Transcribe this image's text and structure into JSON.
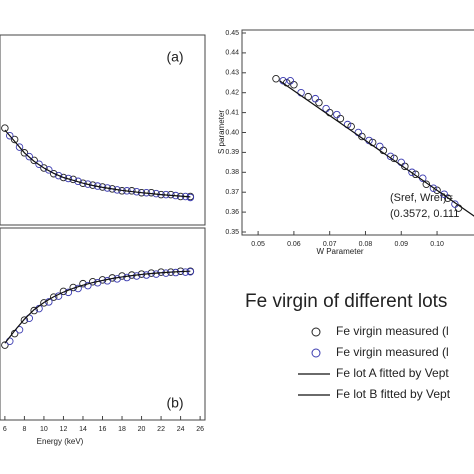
{
  "chart_data": [
    {
      "type": "line",
      "annotation": "(a)",
      "xlim": [
        5.5,
        26.5
      ],
      "ylim": [
        0,
        1
      ],
      "series": [
        {
          "color": "#222222",
          "style": "marker",
          "x": [
            6,
            7,
            8,
            9,
            10,
            11,
            12,
            13,
            14,
            15,
            16,
            17,
            18,
            19,
            20,
            21,
            22,
            23,
            24,
            25
          ],
          "values": [
            0.51,
            0.45,
            0.38,
            0.34,
            0.3,
            0.27,
            0.25,
            0.24,
            0.22,
            0.21,
            0.2,
            0.19,
            0.18,
            0.18,
            0.17,
            0.17,
            0.16,
            0.16,
            0.15,
            0.15
          ]
        },
        {
          "color": "#3b3bb0",
          "style": "marker",
          "x": [
            6.5,
            7.5,
            8.5,
            9.5,
            10.5,
            11.5,
            12.5,
            13.5,
            14.5,
            15.5,
            16.5,
            17.5,
            18.5,
            19.5,
            20.5,
            21.5,
            22.5,
            23.5,
            24.5,
            25
          ],
          "values": [
            0.47,
            0.41,
            0.36,
            0.32,
            0.29,
            0.26,
            0.245,
            0.23,
            0.215,
            0.205,
            0.195,
            0.185,
            0.18,
            0.175,
            0.17,
            0.165,
            0.16,
            0.155,
            0.15,
            0.145
          ]
        },
        {
          "color": "#111111",
          "style": "line",
          "x": [
            6,
            7,
            8,
            9,
            10,
            11,
            12,
            13,
            14,
            15,
            16,
            17,
            18,
            19,
            20,
            21,
            22,
            23,
            24,
            25
          ],
          "values": [
            0.5,
            0.44,
            0.38,
            0.335,
            0.3,
            0.272,
            0.25,
            0.235,
            0.22,
            0.208,
            0.198,
            0.19,
            0.182,
            0.176,
            0.17,
            0.165,
            0.16,
            0.156,
            0.152,
            0.148
          ]
        }
      ]
    },
    {
      "type": "line",
      "annotation": "(b)",
      "xlabel": "Energy (keV)",
      "xlim": [
        5.5,
        26.5
      ],
      "ylim": [
        0,
        1
      ],
      "xticks": [
        6,
        8,
        10,
        12,
        14,
        16,
        18,
        20,
        22,
        24,
        26
      ],
      "series": [
        {
          "color": "#222222",
          "style": "marker",
          "x": [
            6,
            7,
            8,
            9,
            10,
            11,
            12,
            13,
            14,
            15,
            16,
            17,
            18,
            19,
            20,
            21,
            22,
            23,
            24,
            25
          ],
          "values": [
            0.39,
            0.45,
            0.52,
            0.57,
            0.61,
            0.64,
            0.67,
            0.69,
            0.71,
            0.72,
            0.73,
            0.74,
            0.75,
            0.755,
            0.76,
            0.765,
            0.77,
            0.77,
            0.775,
            0.775
          ]
        },
        {
          "color": "#3b3bb0",
          "style": "marker",
          "x": [
            6.5,
            7.5,
            8.5,
            9.5,
            10.5,
            11.5,
            12.5,
            13.5,
            14.5,
            15.5,
            16.5,
            17.5,
            18.5,
            19.5,
            20.5,
            21.5,
            22.5,
            23.5,
            24.5,
            25
          ],
          "values": [
            0.41,
            0.47,
            0.53,
            0.58,
            0.615,
            0.645,
            0.665,
            0.685,
            0.7,
            0.715,
            0.725,
            0.735,
            0.742,
            0.75,
            0.755,
            0.76,
            0.765,
            0.768,
            0.77,
            0.772
          ]
        },
        {
          "color": "#111111",
          "style": "line",
          "x": [
            6,
            7,
            8,
            9,
            10,
            11,
            12,
            13,
            14,
            15,
            16,
            17,
            18,
            19,
            20,
            21,
            22,
            23,
            24,
            25
          ],
          "values": [
            0.4,
            0.465,
            0.525,
            0.575,
            0.612,
            0.642,
            0.666,
            0.686,
            0.702,
            0.716,
            0.727,
            0.737,
            0.745,
            0.752,
            0.758,
            0.763,
            0.767,
            0.77,
            0.773,
            0.775
          ]
        }
      ]
    },
    {
      "type": "scatter",
      "xlabel": "W Parameter",
      "ylabel": "S parameter",
      "annotation": [
        "(Sref, Wref)=",
        "(0.3572, 0.111"
      ],
      "xlim": [
        0.0455,
        0.112
      ],
      "ylim": [
        0.3485,
        0.4515
      ],
      "xticks": [
        0.05,
        0.06,
        0.07,
        0.08,
        0.09,
        {
          "value": 0.1,
          "label": "0.10"
        }
      ],
      "yticks": [
        0.35,
        0.36,
        0.37,
        0.38,
        0.39,
        {
          "value": 0.4,
          "label": "0.40"
        },
        0.41,
        0.42,
        0.43,
        0.44,
        0.45
      ],
      "series": [
        {
          "color": "#222222",
          "style": "marker",
          "x": [
            0.055,
            0.058,
            0.06,
            0.064,
            0.067,
            0.07,
            0.073,
            0.076,
            0.079,
            0.082,
            0.085,
            0.088,
            0.091,
            0.094,
            0.097,
            0.1,
            0.103,
            0.106
          ],
          "values": [
            0.427,
            0.425,
            0.424,
            0.418,
            0.415,
            0.41,
            0.407,
            0.403,
            0.398,
            0.395,
            0.391,
            0.387,
            0.383,
            0.379,
            0.374,
            0.371,
            0.367,
            0.362
          ]
        },
        {
          "color": "#3b3bb0",
          "style": "marker",
          "x": [
            0.057,
            0.059,
            0.062,
            0.066,
            0.069,
            0.072,
            0.075,
            0.078,
            0.081,
            0.084,
            0.087,
            0.09,
            0.093,
            0.096,
            0.099,
            0.102,
            0.105
          ],
          "values": [
            0.426,
            0.426,
            0.42,
            0.417,
            0.412,
            0.409,
            0.404,
            0.4,
            0.396,
            0.393,
            0.388,
            0.385,
            0.38,
            0.377,
            0.372,
            0.369,
            0.364
          ]
        },
        {
          "color": "#111111",
          "style": "line",
          "x": [
            0.056,
            0.111
          ],
          "values": [
            0.426,
            0.3572
          ]
        }
      ]
    }
  ],
  "legend": {
    "title": "Fe virgin of different lots",
    "entries": [
      {
        "name": "Fe virgin measured (l",
        "color": "#222222",
        "style": "marker"
      },
      {
        "name": "Fe virgin measured (l",
        "color": "#3b3bb0",
        "style": "marker"
      },
      {
        "name": "Fe lot A fitted by Vept",
        "color": "#111111",
        "style": "line"
      },
      {
        "name": "Fe lot B fitted by Vept",
        "color": "#111111",
        "style": "line"
      }
    ]
  }
}
